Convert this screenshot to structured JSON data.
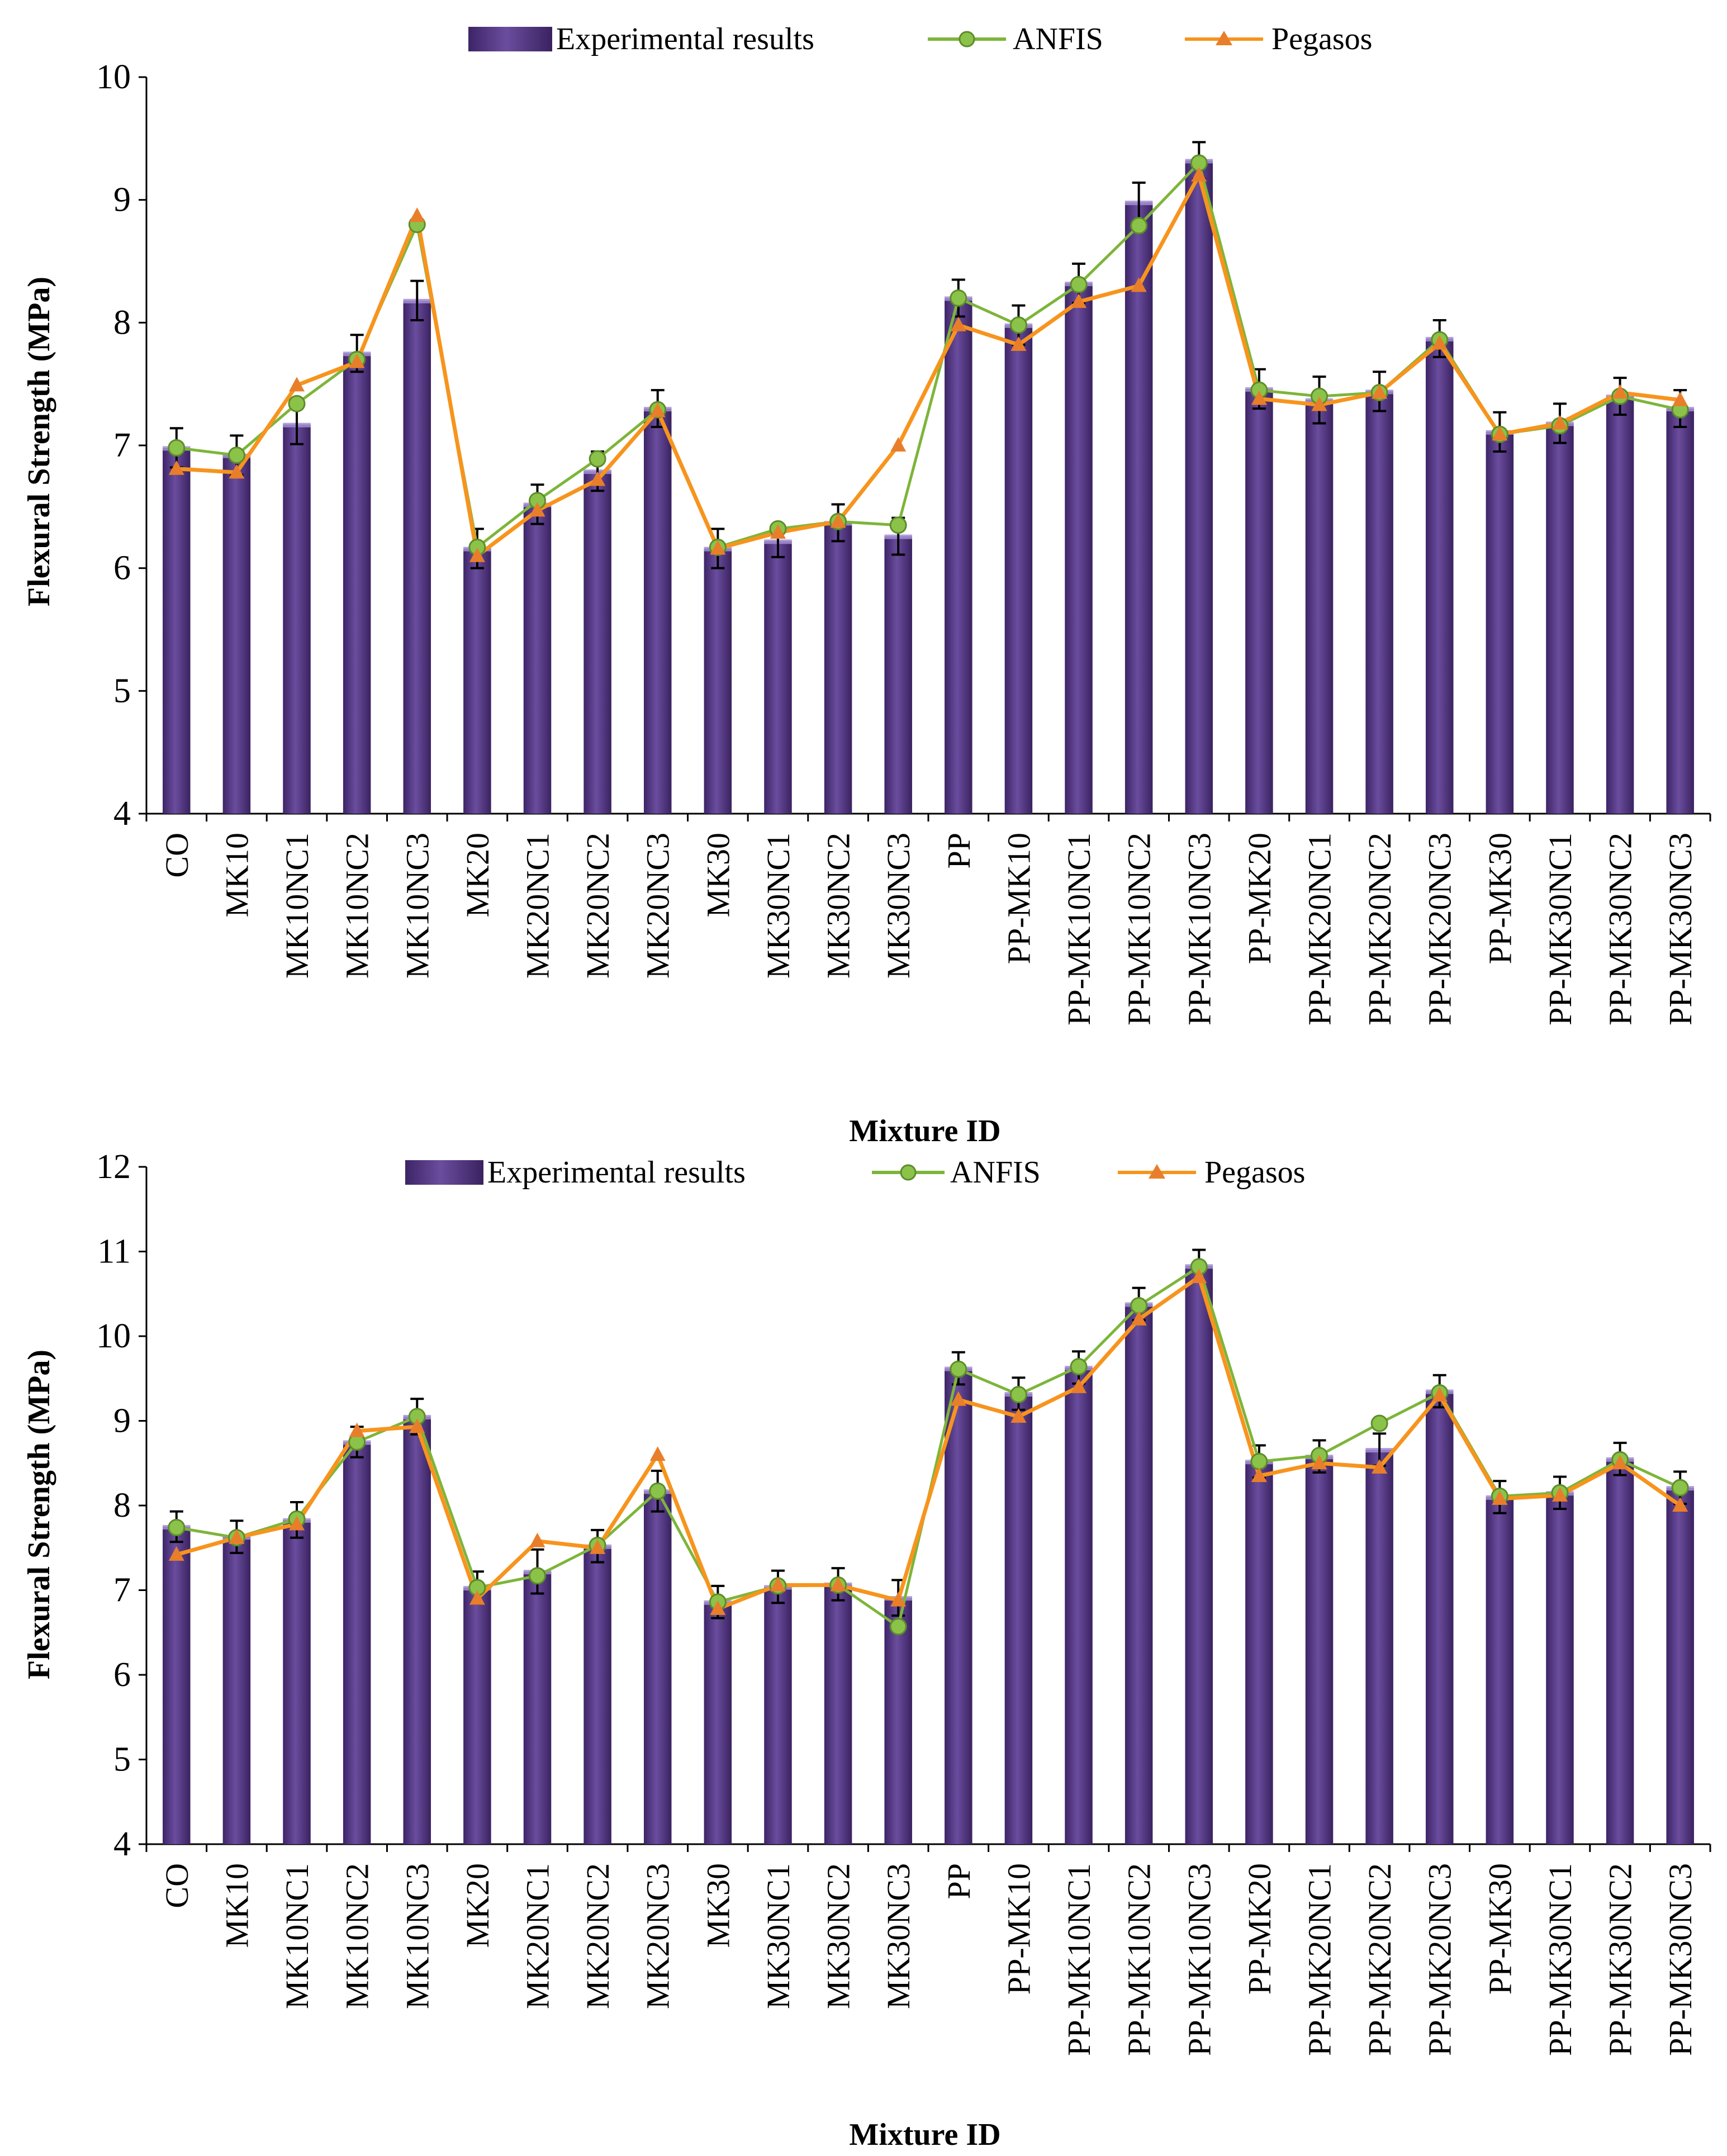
{
  "colors": {
    "bar_dark": "#4B2F7A",
    "bar_light": "#8E76C2",
    "anfis": "#7DB53A",
    "anfis_marker": "#8BC34A",
    "pegasos": "#F7941D",
    "pegasos_marker": "#E87E2A"
  },
  "chart_data": [
    {
      "type": "bar",
      "xlabel": "Mixture ID",
      "ylabel": "Flexural Strength (MPa)",
      "ylim": [
        4,
        10
      ],
      "yticks": [
        "4",
        "5",
        "6",
        "7",
        "8",
        "9",
        "10"
      ],
      "legend": [
        "Experimental results",
        "ANFIS",
        "Pegasos"
      ],
      "categories": [
        "CO",
        "MK10",
        "MK10NC1",
        "MK10NC2",
        "MK10NC3",
        "MK20",
        "MK20NC1",
        "MK20NC2",
        "MK20NC3",
        "MK30",
        "MK30NC1",
        "MK30NC2",
        "MK30NC3",
        "PP",
        "PP-MK10",
        "PP-MK10NC1",
        "PP-MK10NC2",
        "PP-MK10NC3",
        "PP-MK20",
        "PP-MK20NC1",
        "PP-MK20NC2",
        "PP-MK20NC3",
        "PP-MK30",
        "PP-MK30NC1",
        "PP-MK30NC2",
        "PP-MK30NC3"
      ],
      "series": [
        {
          "name": "Experimental results",
          "values": [
            6.98,
            6.92,
            7.17,
            7.75,
            8.18,
            6.16,
            6.52,
            6.79,
            7.3,
            6.16,
            6.22,
            6.37,
            6.26,
            8.2,
            7.98,
            8.32,
            8.98,
            9.32,
            7.46,
            7.37,
            7.44,
            7.87,
            7.11,
            7.18,
            7.4,
            7.3
          ],
          "errors": [
            0.16,
            0.16,
            0.16,
            0.15,
            0.16,
            0.16,
            0.16,
            0.16,
            0.15,
            0.16,
            0.13,
            0.15,
            0.15,
            0.15,
            0.16,
            0.16,
            0.16,
            0.15,
            0.16,
            0.19,
            0.16,
            0.15,
            0.16,
            0.16,
            0.15,
            0.15
          ]
        },
        {
          "name": "ANFIS",
          "values": [
            6.98,
            6.92,
            7.34,
            7.7,
            8.8,
            6.17,
            6.55,
            6.89,
            7.29,
            6.17,
            6.32,
            6.38,
            6.35,
            8.2,
            7.98,
            8.31,
            8.79,
            9.3,
            7.45,
            7.4,
            7.43,
            7.86,
            7.09,
            7.16,
            7.4,
            7.29
          ]
        },
        {
          "name": "Pegasos",
          "values": [
            6.81,
            6.78,
            7.49,
            7.68,
            8.87,
            6.1,
            6.47,
            6.72,
            7.28,
            6.16,
            6.29,
            6.38,
            7.0,
            7.98,
            7.82,
            8.17,
            8.3,
            9.2,
            7.38,
            7.33,
            7.43,
            7.83,
            7.09,
            7.18,
            7.43,
            7.37
          ]
        }
      ]
    },
    {
      "type": "bar",
      "xlabel": "Mixture ID",
      "ylabel": "Flexural Strength (MPa)",
      "ylim": [
        4,
        12
      ],
      "yticks": [
        "4",
        "5",
        "6",
        "7",
        "8",
        "9",
        "10",
        "11",
        "12"
      ],
      "legend": [
        "Experimental results",
        "ANFIS",
        "Pegasos"
      ],
      "categories": [
        "CO",
        "MK10",
        "MK10NC1",
        "MK10NC2",
        "MK10NC3",
        "MK20",
        "MK20NC1",
        "MK20NC2",
        "MK20NC3",
        "MK30",
        "MK30NC1",
        "MK30NC2",
        "MK30NC3",
        "PP",
        "PP-MK10",
        "PP-MK10NC1",
        "PP-MK10NC2",
        "PP-MK10NC3",
        "PP-MK20",
        "PP-MK20NC1",
        "PP-MK20NC2",
        "PP-MK20NC3",
        "PP-MK30",
        "PP-MK30NC1",
        "PP-MK30NC2",
        "PP-MK30NC3"
      ],
      "series": [
        {
          "name": "Experimental results",
          "values": [
            7.75,
            7.63,
            7.83,
            8.75,
            9.05,
            7.03,
            7.22,
            7.52,
            8.17,
            6.86,
            7.04,
            7.07,
            6.91,
            9.62,
            9.32,
            9.63,
            10.38,
            10.83,
            8.52,
            8.58,
            8.66,
            9.35,
            8.1,
            8.15,
            8.55,
            8.21
          ],
          "errors": [
            0.18,
            0.19,
            0.21,
            0.18,
            0.21,
            0.19,
            0.26,
            0.19,
            0.24,
            0.19,
            0.19,
            0.19,
            0.21,
            0.19,
            0.19,
            0.19,
            0.19,
            0.19,
            0.19,
            0.19,
            0.19,
            0.19,
            0.19,
            0.19,
            0.19,
            0.19
          ]
        },
        {
          "name": "ANFIS",
          "values": [
            7.74,
            7.62,
            7.84,
            8.75,
            9.05,
            7.03,
            7.17,
            7.53,
            8.17,
            6.86,
            7.05,
            7.06,
            6.57,
            9.61,
            9.31,
            9.64,
            10.36,
            10.82,
            8.52,
            8.59,
            8.97,
            9.33,
            8.11,
            8.15,
            8.54,
            8.21
          ]
        },
        {
          "name": "Pegasos",
          "values": [
            7.42,
            7.62,
            7.78,
            8.88,
            8.93,
            6.9,
            7.58,
            7.5,
            8.6,
            6.78,
            7.06,
            7.06,
            6.88,
            9.25,
            9.05,
            9.4,
            10.2,
            10.7,
            8.35,
            8.5,
            8.45,
            9.3,
            8.08,
            8.12,
            8.5,
            8.0
          ]
        }
      ]
    }
  ]
}
